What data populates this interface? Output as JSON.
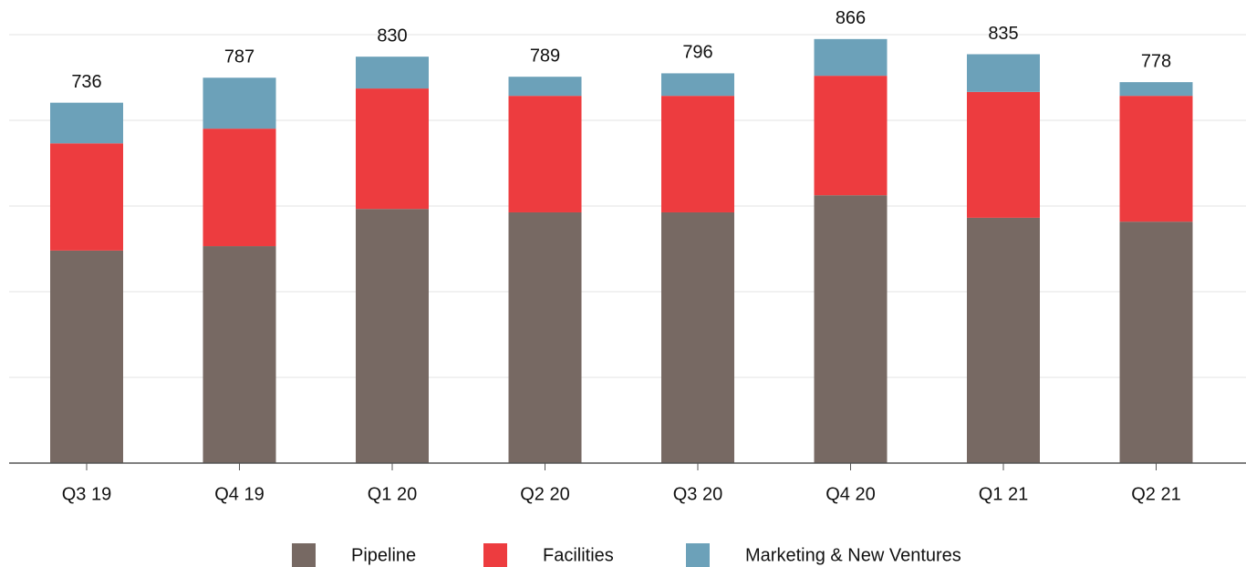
{
  "chart_data": {
    "type": "stacked-bar",
    "categories": [
      "Q3 19",
      "Q4 19",
      "Q1 20",
      "Q2 20",
      "Q3 20",
      "Q4 20",
      "Q1 21",
      "Q2 21"
    ],
    "series": [
      {
        "name": "Pipeline",
        "color": "#776963",
        "values": [
          434,
          443,
          519,
          512,
          512,
          547,
          501,
          493
        ]
      },
      {
        "name": "Facilities",
        "color": "#ed3c3f",
        "values": [
          219,
          240,
          246,
          238,
          238,
          244,
          257,
          257
        ]
      },
      {
        "name": "Marketing & New Ventures",
        "color": "#6ca1b9",
        "values": [
          83,
          104,
          65,
          39,
          46,
          75,
          77,
          28
        ]
      }
    ],
    "totals": [
      736,
      787,
      830,
      789,
      796,
      866,
      835,
      778
    ],
    "ylim": [
      0,
      875
    ],
    "yticks": [
      0,
      175,
      350,
      525,
      700,
      875
    ],
    "grid": true
  }
}
